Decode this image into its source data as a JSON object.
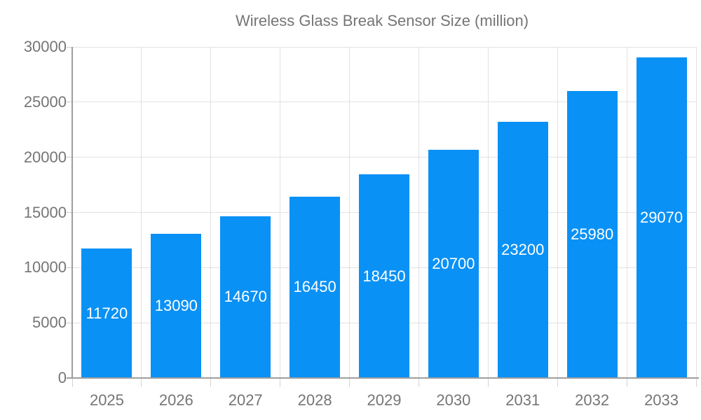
{
  "chart_data": {
    "type": "bar",
    "title": "Wireless Glass Break Sensor Size (million)",
    "legend_entries": [
      "Wireless Glass Break Sensor Size (million)"
    ],
    "categories": [
      "2025",
      "2026",
      "2027",
      "2028",
      "2029",
      "2030",
      "2031",
      "2032",
      "2033"
    ],
    "values": [
      11720,
      13090,
      14670,
      16450,
      18450,
      20700,
      23200,
      25980,
      29070
    ],
    "value_labels": [
      "11720",
      "13090",
      "14670",
      "16450",
      "18450",
      "20700",
      "23200",
      "25980",
      "29070"
    ],
    "xlabel": "",
    "ylabel": "",
    "ylim": [
      0,
      30000
    ],
    "ytick_interval": 5000,
    "ytick_labels": [
      "0",
      "5000",
      "10000",
      "15000",
      "20000",
      "25000",
      "30000"
    ],
    "grid": true,
    "legend_position": "top",
    "bar_color": "#0a91f5",
    "value_label_color": "#ffffff",
    "axis_text_color": "#757575"
  }
}
